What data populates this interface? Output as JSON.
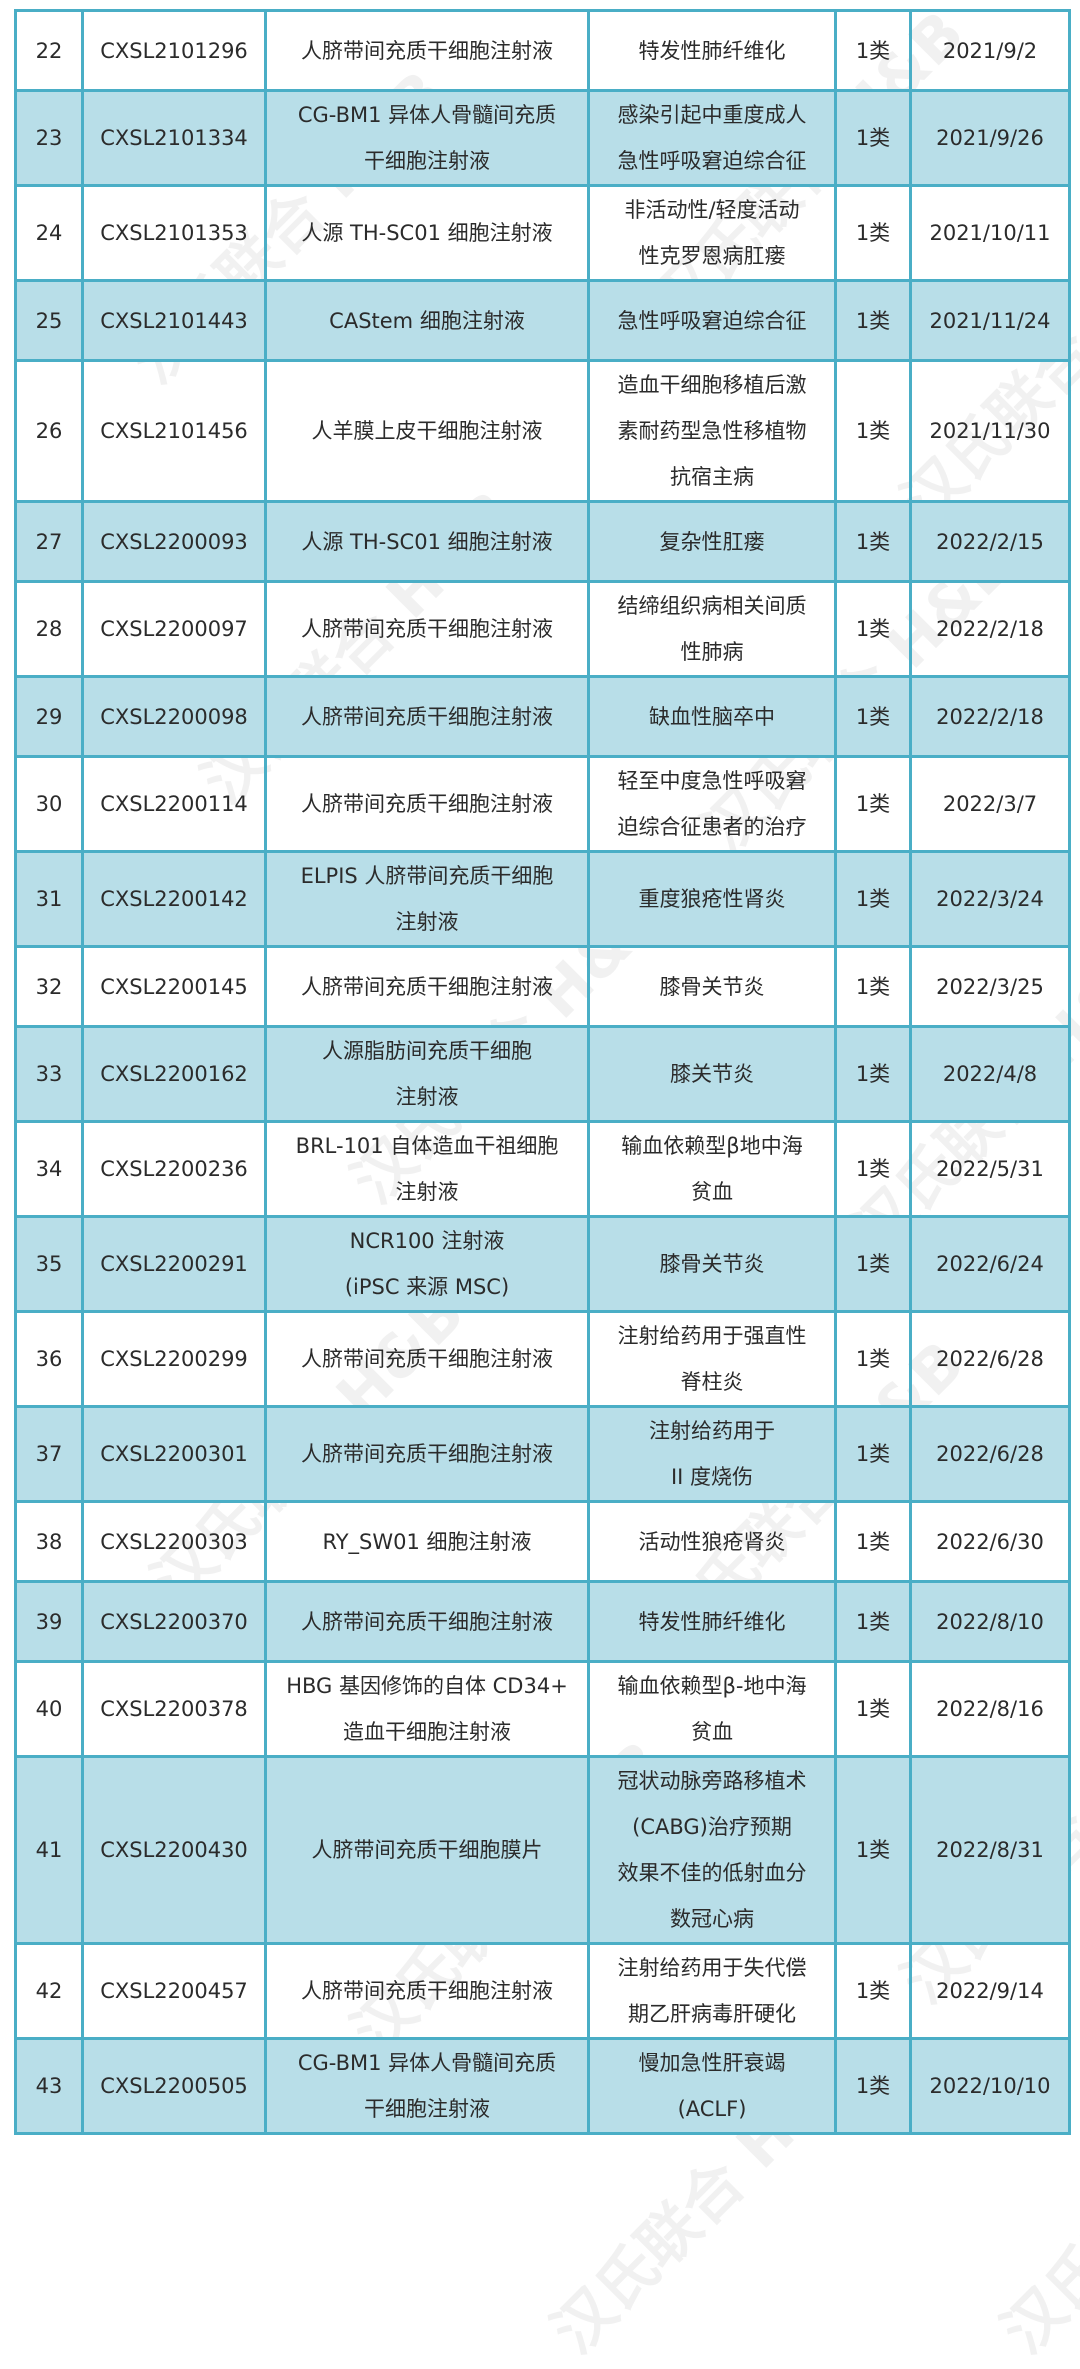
{
  "watermark": "汉氏联合 H&B",
  "colors": {
    "border": "#4aaec6",
    "alt_row": "#b8dee8"
  },
  "rows": [
    {
      "no": "22",
      "code": "CXSL2101296",
      "name": [
        "人脐带间充质干细胞注射液"
      ],
      "indication": [
        "特发性肺纤维化"
      ],
      "category": "1类",
      "date": "2021/9/2"
    },
    {
      "no": "23",
      "code": "CXSL2101334",
      "name": [
        "CG-BM1 异体人骨髓间充质",
        "干细胞注射液"
      ],
      "indication": [
        "感染引起中重度成人",
        "急性呼吸窘迫综合征"
      ],
      "category": "1类",
      "date": "2021/9/26"
    },
    {
      "no": "24",
      "code": "CXSL2101353",
      "name": [
        "人源 TH-SC01 细胞注射液"
      ],
      "indication": [
        "非活动性/轻度活动",
        "性克罗恩病肛瘘"
      ],
      "category": "1类",
      "date": "2021/10/11"
    },
    {
      "no": "25",
      "code": "CXSL2101443",
      "name": [
        "CAStem 细胞注射液"
      ],
      "indication": [
        "急性呼吸窘迫综合征"
      ],
      "category": "1类",
      "date": "2021/11/24"
    },
    {
      "no": "26",
      "code": "CXSL2101456",
      "name": [
        "人羊膜上皮干细胞注射液"
      ],
      "indication": [
        "造血干细胞移植后激",
        "素耐药型急性移植物",
        "抗宿主病"
      ],
      "category": "1类",
      "date": "2021/11/30"
    },
    {
      "no": "27",
      "code": "CXSL2200093",
      "name": [
        "人源 TH-SC01 细胞注射液"
      ],
      "indication": [
        "复杂性肛瘘"
      ],
      "category": "1类",
      "date": "2022/2/15"
    },
    {
      "no": "28",
      "code": "CXSL2200097",
      "name": [
        "人脐带间充质干细胞注射液"
      ],
      "indication": [
        "结缔组织病相关间质",
        "性肺病"
      ],
      "category": "1类",
      "date": "2022/2/18"
    },
    {
      "no": "29",
      "code": "CXSL2200098",
      "name": [
        "人脐带间充质干细胞注射液"
      ],
      "indication": [
        "缺血性脑卒中"
      ],
      "category": "1类",
      "date": "2022/2/18"
    },
    {
      "no": "30",
      "code": "CXSL2200114",
      "name": [
        "人脐带间充质干细胞注射液"
      ],
      "indication": [
        "轻至中度急性呼吸窘",
        "迫综合征患者的治疗"
      ],
      "category": "1类",
      "date": "2022/3/7"
    },
    {
      "no": "31",
      "code": "CXSL2200142",
      "name": [
        "ELPIS 人脐带间充质干细胞",
        "注射液"
      ],
      "indication": [
        "重度狼疮性肾炎"
      ],
      "category": "1类",
      "date": "2022/3/24"
    },
    {
      "no": "32",
      "code": "CXSL2200145",
      "name": [
        "人脐带间充质干细胞注射液"
      ],
      "indication": [
        "膝骨关节炎"
      ],
      "category": "1类",
      "date": "2022/3/25"
    },
    {
      "no": "33",
      "code": "CXSL2200162",
      "name": [
        "人源脂肪间充质干细胞",
        "注射液"
      ],
      "indication": [
        "膝关节炎"
      ],
      "category": "1类",
      "date": "2022/4/8"
    },
    {
      "no": "34",
      "code": "CXSL2200236",
      "name": [
        "BRL-101 自体造血干祖细胞",
        "注射液"
      ],
      "indication": [
        "输血依赖型β地中海",
        "贫血"
      ],
      "category": "1类",
      "date": "2022/5/31"
    },
    {
      "no": "35",
      "code": "CXSL2200291",
      "name": [
        "NCR100 注射液",
        "(iPSC 来源 MSC)"
      ],
      "indication": [
        "膝骨关节炎"
      ],
      "category": "1类",
      "date": "2022/6/24"
    },
    {
      "no": "36",
      "code": "CXSL2200299",
      "name": [
        "人脐带间充质干细胞注射液"
      ],
      "indication": [
        "注射给药用于强直性",
        "脊柱炎"
      ],
      "category": "1类",
      "date": "2022/6/28"
    },
    {
      "no": "37",
      "code": "CXSL2200301",
      "name": [
        "人脐带间充质干细胞注射液"
      ],
      "indication": [
        "注射给药用于",
        "II 度烧伤"
      ],
      "category": "1类",
      "date": "2022/6/28"
    },
    {
      "no": "38",
      "code": "CXSL2200303",
      "name": [
        "RY_SW01 细胞注射液"
      ],
      "indication": [
        "活动性狼疮肾炎"
      ],
      "category": "1类",
      "date": "2022/6/30"
    },
    {
      "no": "39",
      "code": "CXSL2200370",
      "name": [
        "人脐带间充质干细胞注射液"
      ],
      "indication": [
        "特发性肺纤维化"
      ],
      "category": "1类",
      "date": "2022/8/10"
    },
    {
      "no": "40",
      "code": "CXSL2200378",
      "name": [
        "HBG 基因修饰的自体 CD34+",
        "造血干细胞注射液"
      ],
      "indication": [
        "输血依赖型β-地中海",
        "贫血"
      ],
      "category": "1类",
      "date": "2022/8/16"
    },
    {
      "no": "41",
      "code": "CXSL2200430",
      "name": [
        "人脐带间充质干细胞膜片"
      ],
      "indication": [
        "冠状动脉旁路移植术",
        "(CABG)治疗预期",
        "效果不佳的低射血分",
        "数冠心病"
      ],
      "category": "1类",
      "date": "2022/8/31"
    },
    {
      "no": "42",
      "code": "CXSL2200457",
      "name": [
        "人脐带间充质干细胞注射液"
      ],
      "indication": [
        "注射给药用于失代偿",
        "期乙肝病毒肝硬化"
      ],
      "category": "1类",
      "date": "2022/9/14"
    },
    {
      "no": "43",
      "code": "CXSL2200505",
      "name": [
        "CG-BM1 异体人骨髓间充质",
        "干细胞注射液"
      ],
      "indication": [
        "慢加急性肝衰竭",
        "(ACLF)"
      ],
      "category": "1类",
      "date": "2022/10/10"
    }
  ]
}
